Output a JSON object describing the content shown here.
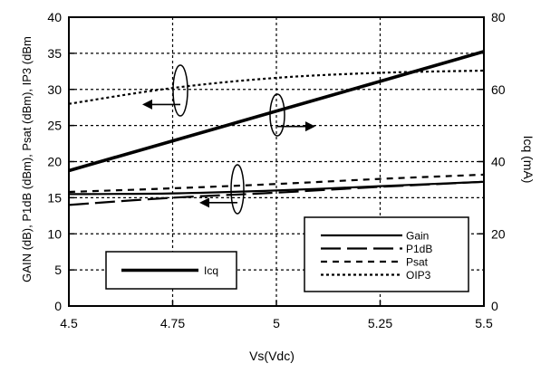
{
  "chart_data": {
    "type": "line",
    "title": "",
    "xlabel": "Vs(Vdc)",
    "ylabel_left": "GAIN (dB), P1dB (dBm), Psat (dBm), IP3 (dBm",
    "ylabel_right": "Icq (mA)",
    "xlim": [
      4.5,
      5.5
    ],
    "ylim_left": [
      0,
      40
    ],
    "ylim_right": [
      0,
      80
    ],
    "x_ticks": [
      "4.5",
      "4.75",
      "5",
      "5.25",
      "5.5"
    ],
    "y_left_ticks": [
      "0",
      "5",
      "10",
      "15",
      "20",
      "25",
      "30",
      "35",
      "40"
    ],
    "y_right_ticks": [
      "0",
      "20",
      "40",
      "60",
      "80"
    ],
    "grid": true,
    "series": [
      {
        "name": "Gain",
        "axis": "left",
        "style": "solid",
        "x": [
          4.5,
          4.75,
          5.0,
          5.25,
          5.5
        ],
        "y": [
          15.5,
          15.6,
          16.0,
          16.6,
          17.2
        ]
      },
      {
        "name": "P1dB",
        "axis": "left",
        "style": "long-dash",
        "x": [
          4.5,
          4.75,
          5.0,
          5.25,
          5.5
        ],
        "y": [
          14.0,
          15.0,
          15.7,
          16.5,
          17.2
        ]
      },
      {
        "name": "Psat",
        "axis": "left",
        "style": "short-dash",
        "x": [
          4.5,
          4.75,
          5.0,
          5.25,
          5.5
        ],
        "y": [
          15.8,
          16.3,
          16.9,
          17.6,
          18.2
        ]
      },
      {
        "name": "OIP3",
        "axis": "left",
        "style": "dotted",
        "x": [
          4.5,
          4.75,
          5.0,
          5.25,
          5.5
        ],
        "y": [
          28.0,
          30.2,
          31.6,
          32.3,
          32.6
        ]
      },
      {
        "name": "Icq",
        "axis": "right",
        "style": "thick-solid",
        "x": [
          4.5,
          5.5
        ],
        "y": [
          37.5,
          70.5
        ]
      }
    ],
    "legend_right": {
      "placement": "bottom-right",
      "entries": [
        "Gain",
        "P1dB",
        "Psat",
        "OIP3"
      ]
    },
    "legend_left": {
      "placement": "bottom-left",
      "entries": [
        "Icq"
      ]
    }
  }
}
